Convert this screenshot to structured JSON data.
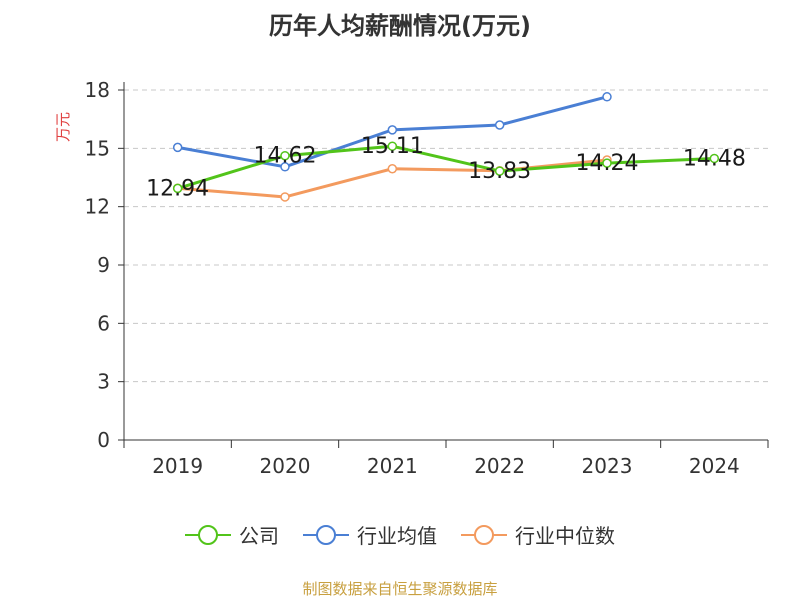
{
  "title": "历年人均薪酬情况(万元)",
  "source": "制图数据来自恒生聚源数据库",
  "chart_data": {
    "type": "line",
    "title": "历年人均薪酬情况(万元)",
    "ylabel": "万元",
    "xlabel": "",
    "ylim": [
      0,
      18
    ],
    "yticks": [
      "0",
      "3",
      "6",
      "9",
      "12",
      "15",
      "18"
    ],
    "categories": [
      "2019",
      "2020",
      "2021",
      "2022",
      "2023",
      "2024"
    ],
    "grid": true,
    "legend_position": "bottom",
    "series": [
      {
        "name": "公司",
        "color": "#52c41a",
        "values": [
          12.94,
          14.62,
          15.11,
          13.83,
          14.24,
          14.48
        ],
        "labels": [
          "12.94",
          "14.62",
          "15.11",
          "13.83",
          "14.24",
          "14.48"
        ]
      },
      {
        "name": "行业均值",
        "color": "#4a7fd4",
        "values": [
          15.05,
          14.05,
          15.95,
          16.2,
          17.65,
          null
        ]
      },
      {
        "name": "行业中位数",
        "color": "#f39a5e",
        "values": [
          12.95,
          12.5,
          13.95,
          13.85,
          14.4,
          null
        ]
      }
    ]
  }
}
